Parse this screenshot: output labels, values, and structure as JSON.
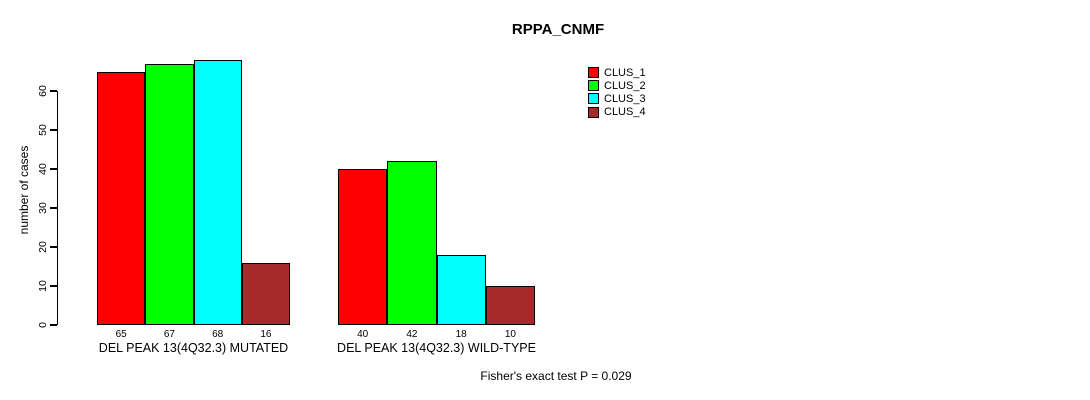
{
  "title": "RPPA_CNMF",
  "y_axis": {
    "label": "number of cases"
  },
  "annotation": "Fisher's exact test P = 0.029",
  "chart_data": {
    "type": "bar",
    "title": "RPPA_CNMF",
    "xlabel": "",
    "ylabel": "number of cases",
    "ylim": [
      0,
      60
    ],
    "yticks": [
      0,
      10,
      20,
      30,
      40,
      50,
      60
    ],
    "grid": false,
    "legend_position": "top-right",
    "categories": [
      "DEL PEAK 13(4Q32.3) MUTATED",
      "DEL PEAK 13(4Q32.3) WILD-TYPE"
    ],
    "series": [
      {
        "name": "CLUS_1",
        "color": "#ff0000",
        "values": [
          65,
          40
        ]
      },
      {
        "name": "CLUS_2",
        "color": "#00ff00",
        "values": [
          67,
          42
        ]
      },
      {
        "name": "CLUS_3",
        "color": "#00ffff",
        "values": [
          68,
          18
        ]
      },
      {
        "name": "CLUS_4",
        "color": "#a52a2a",
        "values": [
          16,
          10
        ]
      }
    ],
    "bar_value_labels": [
      [
        65,
        67,
        68,
        16
      ],
      [
        40,
        42,
        18,
        10
      ]
    ],
    "annotation": "Fisher's exact test P = 0.029"
  }
}
